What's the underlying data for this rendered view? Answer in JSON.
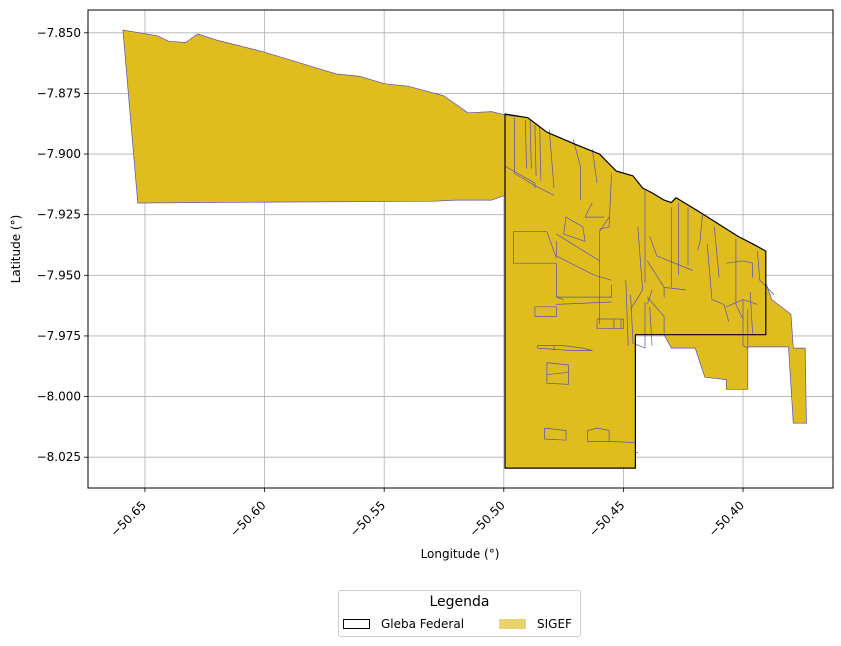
{
  "chart_data": {
    "type": "map",
    "xlabel": "Longitude (°)",
    "ylabel": "Latitude (°)",
    "xlim": [
      -50.6738,
      -50.3624
    ],
    "ylim": [
      -8.0377,
      -7.8406
    ],
    "grid": true,
    "x_ticks": [
      {
        "value": -50.65,
        "label": "−50.65"
      },
      {
        "value": -50.6,
        "label": "−50.60"
      },
      {
        "value": -50.55,
        "label": "−50.55"
      },
      {
        "value": -50.5,
        "label": "−50.50"
      },
      {
        "value": -50.45,
        "label": "−50.45"
      },
      {
        "value": -50.4,
        "label": "−50.40"
      }
    ],
    "y_ticks": [
      {
        "value": -7.85,
        "label": "−7.850"
      },
      {
        "value": -7.875,
        "label": "−7.875"
      },
      {
        "value": -7.9,
        "label": "−7.900"
      },
      {
        "value": -7.925,
        "label": "−7.925"
      },
      {
        "value": -7.95,
        "label": "−7.950"
      },
      {
        "value": -7.975,
        "label": "−7.975"
      },
      {
        "value": -8.0,
        "label": "−8.000"
      },
      {
        "value": -8.025,
        "label": "−8.025"
      }
    ],
    "colors": {
      "sigef_fill": "#e0bd1f",
      "sigef_edge": "#5a4fb8",
      "gleba_edge": "#000000",
      "legend_sigef": "#ead26d"
    },
    "sigef_main": [
      [
        -50.6592,
        -7.8489
      ],
      [
        -50.645,
        -7.8512
      ],
      [
        -50.64,
        -7.8535
      ],
      [
        -50.633,
        -7.854
      ],
      [
        -50.628,
        -7.8505
      ],
      [
        -50.62,
        -7.853
      ],
      [
        -50.6,
        -7.858
      ],
      [
        -50.58,
        -7.864
      ],
      [
        -50.57,
        -7.867
      ],
      [
        -50.56,
        -7.868
      ],
      [
        -50.55,
        -7.871
      ],
      [
        -50.54,
        -7.872
      ],
      [
        -50.525,
        -7.876
      ],
      [
        -50.515,
        -7.883
      ],
      [
        -50.505,
        -7.8825
      ],
      [
        -50.499,
        -7.884
      ],
      [
        -50.49,
        -7.885
      ],
      [
        -50.482,
        -7.891
      ],
      [
        -50.47,
        -7.896
      ],
      [
        -50.46,
        -7.9
      ],
      [
        -50.453,
        -7.907
      ],
      [
        -50.446,
        -7.909
      ],
      [
        -50.442,
        -7.914
      ],
      [
        -50.438,
        -7.916
      ],
      [
        -50.433,
        -7.919
      ],
      [
        -50.43,
        -7.92
      ],
      [
        -50.428,
        -7.918
      ],
      [
        -50.418,
        -7.924
      ],
      [
        -50.41,
        -7.929
      ],
      [
        -50.402,
        -7.934
      ],
      [
        -50.396,
        -7.937
      ],
      [
        -50.3905,
        -7.94
      ],
      [
        -50.3905,
        -7.953
      ],
      [
        -50.388,
        -7.96
      ],
      [
        -50.38,
        -7.966
      ],
      [
        -50.379,
        -7.98
      ],
      [
        -50.374,
        -7.98
      ],
      [
        -50.3735,
        -8.011
      ],
      [
        -50.379,
        -8.011
      ],
      [
        -50.381,
        -7.9795
      ],
      [
        -50.382,
        -7.9795
      ],
      [
        -50.386,
        -7.9795
      ],
      [
        -50.398,
        -7.9795
      ],
      [
        -50.398,
        -7.997
      ],
      [
        -50.407,
        -7.997
      ],
      [
        -50.407,
        -7.993
      ],
      [
        -50.416,
        -7.992
      ],
      [
        -50.42,
        -7.98
      ],
      [
        -50.43,
        -7.98
      ],
      [
        -50.433,
        -7.9745
      ],
      [
        -50.445,
        -7.9745
      ],
      [
        -50.445,
        -8.0295
      ],
      [
        -50.4995,
        -8.0295
      ],
      [
        -50.4995,
        -7.917
      ],
      [
        -50.505,
        -7.919
      ],
      [
        -50.52,
        -7.919
      ],
      [
        -50.53,
        -7.9195
      ],
      [
        -50.6,
        -7.9198
      ],
      [
        -50.653,
        -7.9202
      ],
      [
        -50.6592,
        -7.8489
      ]
    ],
    "gleba_federal": [
      [
        -50.4995,
        -7.8835
      ],
      [
        -50.49,
        -7.885
      ],
      [
        -50.482,
        -7.891
      ],
      [
        -50.47,
        -7.896
      ],
      [
        -50.46,
        -7.9
      ],
      [
        -50.453,
        -7.907
      ],
      [
        -50.446,
        -7.909
      ],
      [
        -50.442,
        -7.914
      ],
      [
        -50.438,
        -7.916
      ],
      [
        -50.433,
        -7.919
      ],
      [
        -50.43,
        -7.92
      ],
      [
        -50.428,
        -7.918
      ],
      [
        -50.418,
        -7.924
      ],
      [
        -50.41,
        -7.929
      ],
      [
        -50.402,
        -7.934
      ],
      [
        -50.396,
        -7.937
      ],
      [
        -50.3905,
        -7.94
      ],
      [
        -50.3905,
        -7.9745
      ],
      [
        -50.445,
        -7.9745
      ],
      [
        -50.445,
        -8.0295
      ],
      [
        -50.4995,
        -8.0295
      ],
      [
        -50.4995,
        -7.8835
      ]
    ],
    "parcel_lines": [
      [
        [
          -50.4955,
          -7.885
        ],
        [
          -50.4955,
          -7.908
        ],
        [
          -50.487,
          -7.913
        ],
        [
          -50.479,
          -7.917
        ]
      ],
      [
        [
          -50.491,
          -7.886
        ],
        [
          -50.4905,
          -7.906
        ]
      ],
      [
        [
          -50.489,
          -7.886
        ],
        [
          -50.4885,
          -7.906
        ]
      ],
      [
        [
          -50.487,
          -7.888
        ],
        [
          -50.4865,
          -7.909
        ]
      ],
      [
        [
          -50.485,
          -7.889
        ],
        [
          -50.4845,
          -7.911
        ]
      ],
      [
        [
          -50.481,
          -7.89
        ],
        [
          -50.479,
          -7.914
        ]
      ],
      [
        [
          -50.4995,
          -7.905
        ],
        [
          -50.487,
          -7.912
        ],
        [
          -50.487,
          -7.914
        ]
      ],
      [
        [
          -50.471,
          -7.894
        ],
        [
          -50.468,
          -7.905
        ],
        [
          -50.468,
          -7.919
        ]
      ],
      [
        [
          -50.463,
          -7.898
        ],
        [
          -50.461,
          -7.912
        ]
      ],
      [
        [
          -50.455,
          -7.908
        ],
        [
          -50.456,
          -7.93
        ],
        [
          -50.46,
          -7.931
        ]
      ],
      [
        [
          -50.441,
          -7.915
        ],
        [
          -50.441,
          -7.953
        ]
      ],
      [
        [
          -50.456,
          -7.926
        ],
        [
          -50.46,
          -7.932
        ],
        [
          -50.46,
          -7.97
        ]
      ],
      [
        [
          -50.463,
          -7.92
        ],
        [
          -50.466,
          -7.926
        ],
        [
          -50.458,
          -7.926
        ]
      ],
      [
        [
          -50.474,
          -7.926
        ],
        [
          -50.467,
          -7.93
        ],
        [
          -50.466,
          -7.936
        ],
        [
          -50.475,
          -7.933
        ],
        [
          -50.474,
          -7.926
        ]
      ],
      [
        [
          -50.478,
          -7.933
        ],
        [
          -50.46,
          -7.944
        ]
      ],
      [
        [
          -50.478,
          -7.936
        ],
        [
          -50.478,
          -7.942
        ],
        [
          -50.462,
          -7.95
        ],
        [
          -50.455,
          -7.952
        ]
      ],
      [
        [
          -50.496,
          -7.932
        ],
        [
          -50.482,
          -7.932
        ],
        [
          -50.478,
          -7.943
        ]
      ],
      [
        [
          -50.496,
          -7.932
        ],
        [
          -50.496,
          -7.945
        ],
        [
          -50.478,
          -7.945
        ],
        [
          -50.478,
          -7.959
        ],
        [
          -50.475,
          -7.96
        ]
      ],
      [
        [
          -50.478,
          -7.959
        ],
        [
          -50.455,
          -7.959
        ],
        [
          -50.455,
          -7.954
        ]
      ],
      [
        [
          -50.478,
          -7.962
        ],
        [
          -50.455,
          -7.961
        ]
      ],
      [
        [
          -50.487,
          -7.963
        ],
        [
          -50.478,
          -7.963
        ],
        [
          -50.478,
          -7.967
        ],
        [
          -50.487,
          -7.967
        ],
        [
          -50.487,
          -7.963
        ]
      ],
      [
        [
          -50.461,
          -7.968
        ],
        [
          -50.45,
          -7.968
        ],
        [
          -50.45,
          -7.972
        ],
        [
          -50.461,
          -7.972
        ],
        [
          -50.461,
          -7.968
        ]
      ],
      [
        [
          -50.454,
          -7.968
        ],
        [
          -50.454,
          -7.972
        ]
      ],
      [
        [
          -50.451,
          -7.968
        ],
        [
          -50.451,
          -7.972
        ]
      ],
      [
        [
          -50.444,
          -7.93
        ],
        [
          -50.442,
          -7.956
        ],
        [
          -50.447,
          -7.964
        ]
      ],
      [
        [
          -50.447,
          -7.958
        ],
        [
          -50.446,
          -7.978
        ],
        [
          -50.441,
          -7.98
        ],
        [
          -50.441,
          -7.961
        ]
      ],
      [
        [
          -50.449,
          -7.952
        ],
        [
          -50.448,
          -7.979
        ]
      ],
      [
        [
          -50.439,
          -7.963
        ],
        [
          -50.438,
          -7.979
        ]
      ],
      [
        [
          -50.439,
          -7.934
        ],
        [
          -50.436,
          -7.942
        ],
        [
          -50.421,
          -7.948
        ]
      ],
      [
        [
          -50.44,
          -7.944
        ],
        [
          -50.433,
          -7.955
        ],
        [
          -50.424,
          -7.956
        ]
      ],
      [
        [
          -50.44,
          -7.959
        ],
        [
          -50.433,
          -7.967
        ],
        [
          -50.433,
          -7.974
        ]
      ],
      [
        [
          -50.433,
          -7.955
        ],
        [
          -50.433,
          -7.959
        ]
      ],
      [
        [
          -50.438,
          -7.956
        ],
        [
          -50.44,
          -7.962
        ]
      ],
      [
        [
          -50.43,
          -7.922
        ],
        [
          -50.43,
          -7.955
        ]
      ],
      [
        [
          -50.427,
          -7.92
        ],
        [
          -50.427,
          -7.95
        ]
      ],
      [
        [
          -50.423,
          -7.922
        ],
        [
          -50.423,
          -7.946
        ]
      ],
      [
        [
          -50.417,
          -7.925
        ],
        [
          -50.418,
          -7.936
        ],
        [
          -50.419,
          -7.94
        ]
      ],
      [
        [
          -50.415,
          -7.937
        ],
        [
          -50.413,
          -7.96
        ],
        [
          -50.408,
          -7.962
        ],
        [
          -50.406,
          -7.969
        ]
      ],
      [
        [
          -50.412,
          -7.93
        ],
        [
          -50.41,
          -7.951
        ]
      ],
      [
        [
          -50.403,
          -7.935
        ],
        [
          -50.403,
          -7.962
        ],
        [
          -50.4,
          -7.968
        ]
      ],
      [
        [
          -50.407,
          -7.945
        ],
        [
          -50.4,
          -7.944
        ],
        [
          -50.396,
          -7.945
        ],
        [
          -50.396,
          -7.951
        ]
      ],
      [
        [
          -50.4,
          -7.96
        ],
        [
          -50.4,
          -7.979
        ],
        [
          -50.398,
          -7.98
        ]
      ],
      [
        [
          -50.398,
          -7.964
        ],
        [
          -50.398,
          -7.98
        ]
      ],
      [
        [
          -50.397,
          -7.957
        ],
        [
          -50.396,
          -7.974
        ]
      ],
      [
        [
          -50.394,
          -7.94
        ],
        [
          -50.393,
          -7.952
        ],
        [
          -50.387,
          -7.958
        ]
      ],
      [
        [
          -50.407,
          -7.963
        ],
        [
          -50.4,
          -7.96
        ],
        [
          -50.394,
          -7.962
        ]
      ],
      [
        [
          -50.486,
          -7.979
        ],
        [
          -50.475,
          -7.979
        ],
        [
          -50.467,
          -7.98
        ],
        [
          -50.463,
          -7.981
        ],
        [
          -50.472,
          -7.981
        ],
        [
          -50.486,
          -7.98
        ],
        [
          -50.486,
          -7.979
        ]
      ],
      [
        [
          -50.479,
          -7.979
        ],
        [
          -50.479,
          -7.981
        ]
      ],
      [
        [
          -50.482,
          -7.986
        ],
        [
          -50.473,
          -7.987
        ],
        [
          -50.473,
          -7.995
        ],
        [
          -50.482,
          -7.9945
        ],
        [
          -50.482,
          -7.986
        ]
      ],
      [
        [
          -50.482,
          -7.991
        ],
        [
          -50.473,
          -7.99
        ]
      ],
      [
        [
          -50.483,
          -8.013
        ],
        [
          -50.474,
          -8.014
        ],
        [
          -50.474,
          -8.018
        ],
        [
          -50.483,
          -8.0175
        ],
        [
          -50.483,
          -8.013
        ]
      ],
      [
        [
          -50.465,
          -8.014
        ],
        [
          -50.461,
          -8.013
        ],
        [
          -50.456,
          -8.014
        ],
        [
          -50.456,
          -8.0185
        ],
        [
          -50.465,
          -8.0185
        ],
        [
          -50.465,
          -8.014
        ]
      ],
      [
        [
          -50.456,
          -8.0185
        ],
        [
          -50.445,
          -8.019
        ]
      ],
      [
        [
          -50.445,
          -8.019
        ],
        [
          -50.445,
          -8.023
        ],
        [
          -50.444,
          -8.023
        ]
      ]
    ]
  },
  "axes": {
    "xlabel": "Longitude (°)",
    "ylabel": "Latitude (°)"
  },
  "legend": {
    "title": "Legenda",
    "items": [
      {
        "label": "Gleba Federal",
        "style": "outline"
      },
      {
        "label": "SIGEF",
        "style": "fill"
      }
    ]
  }
}
